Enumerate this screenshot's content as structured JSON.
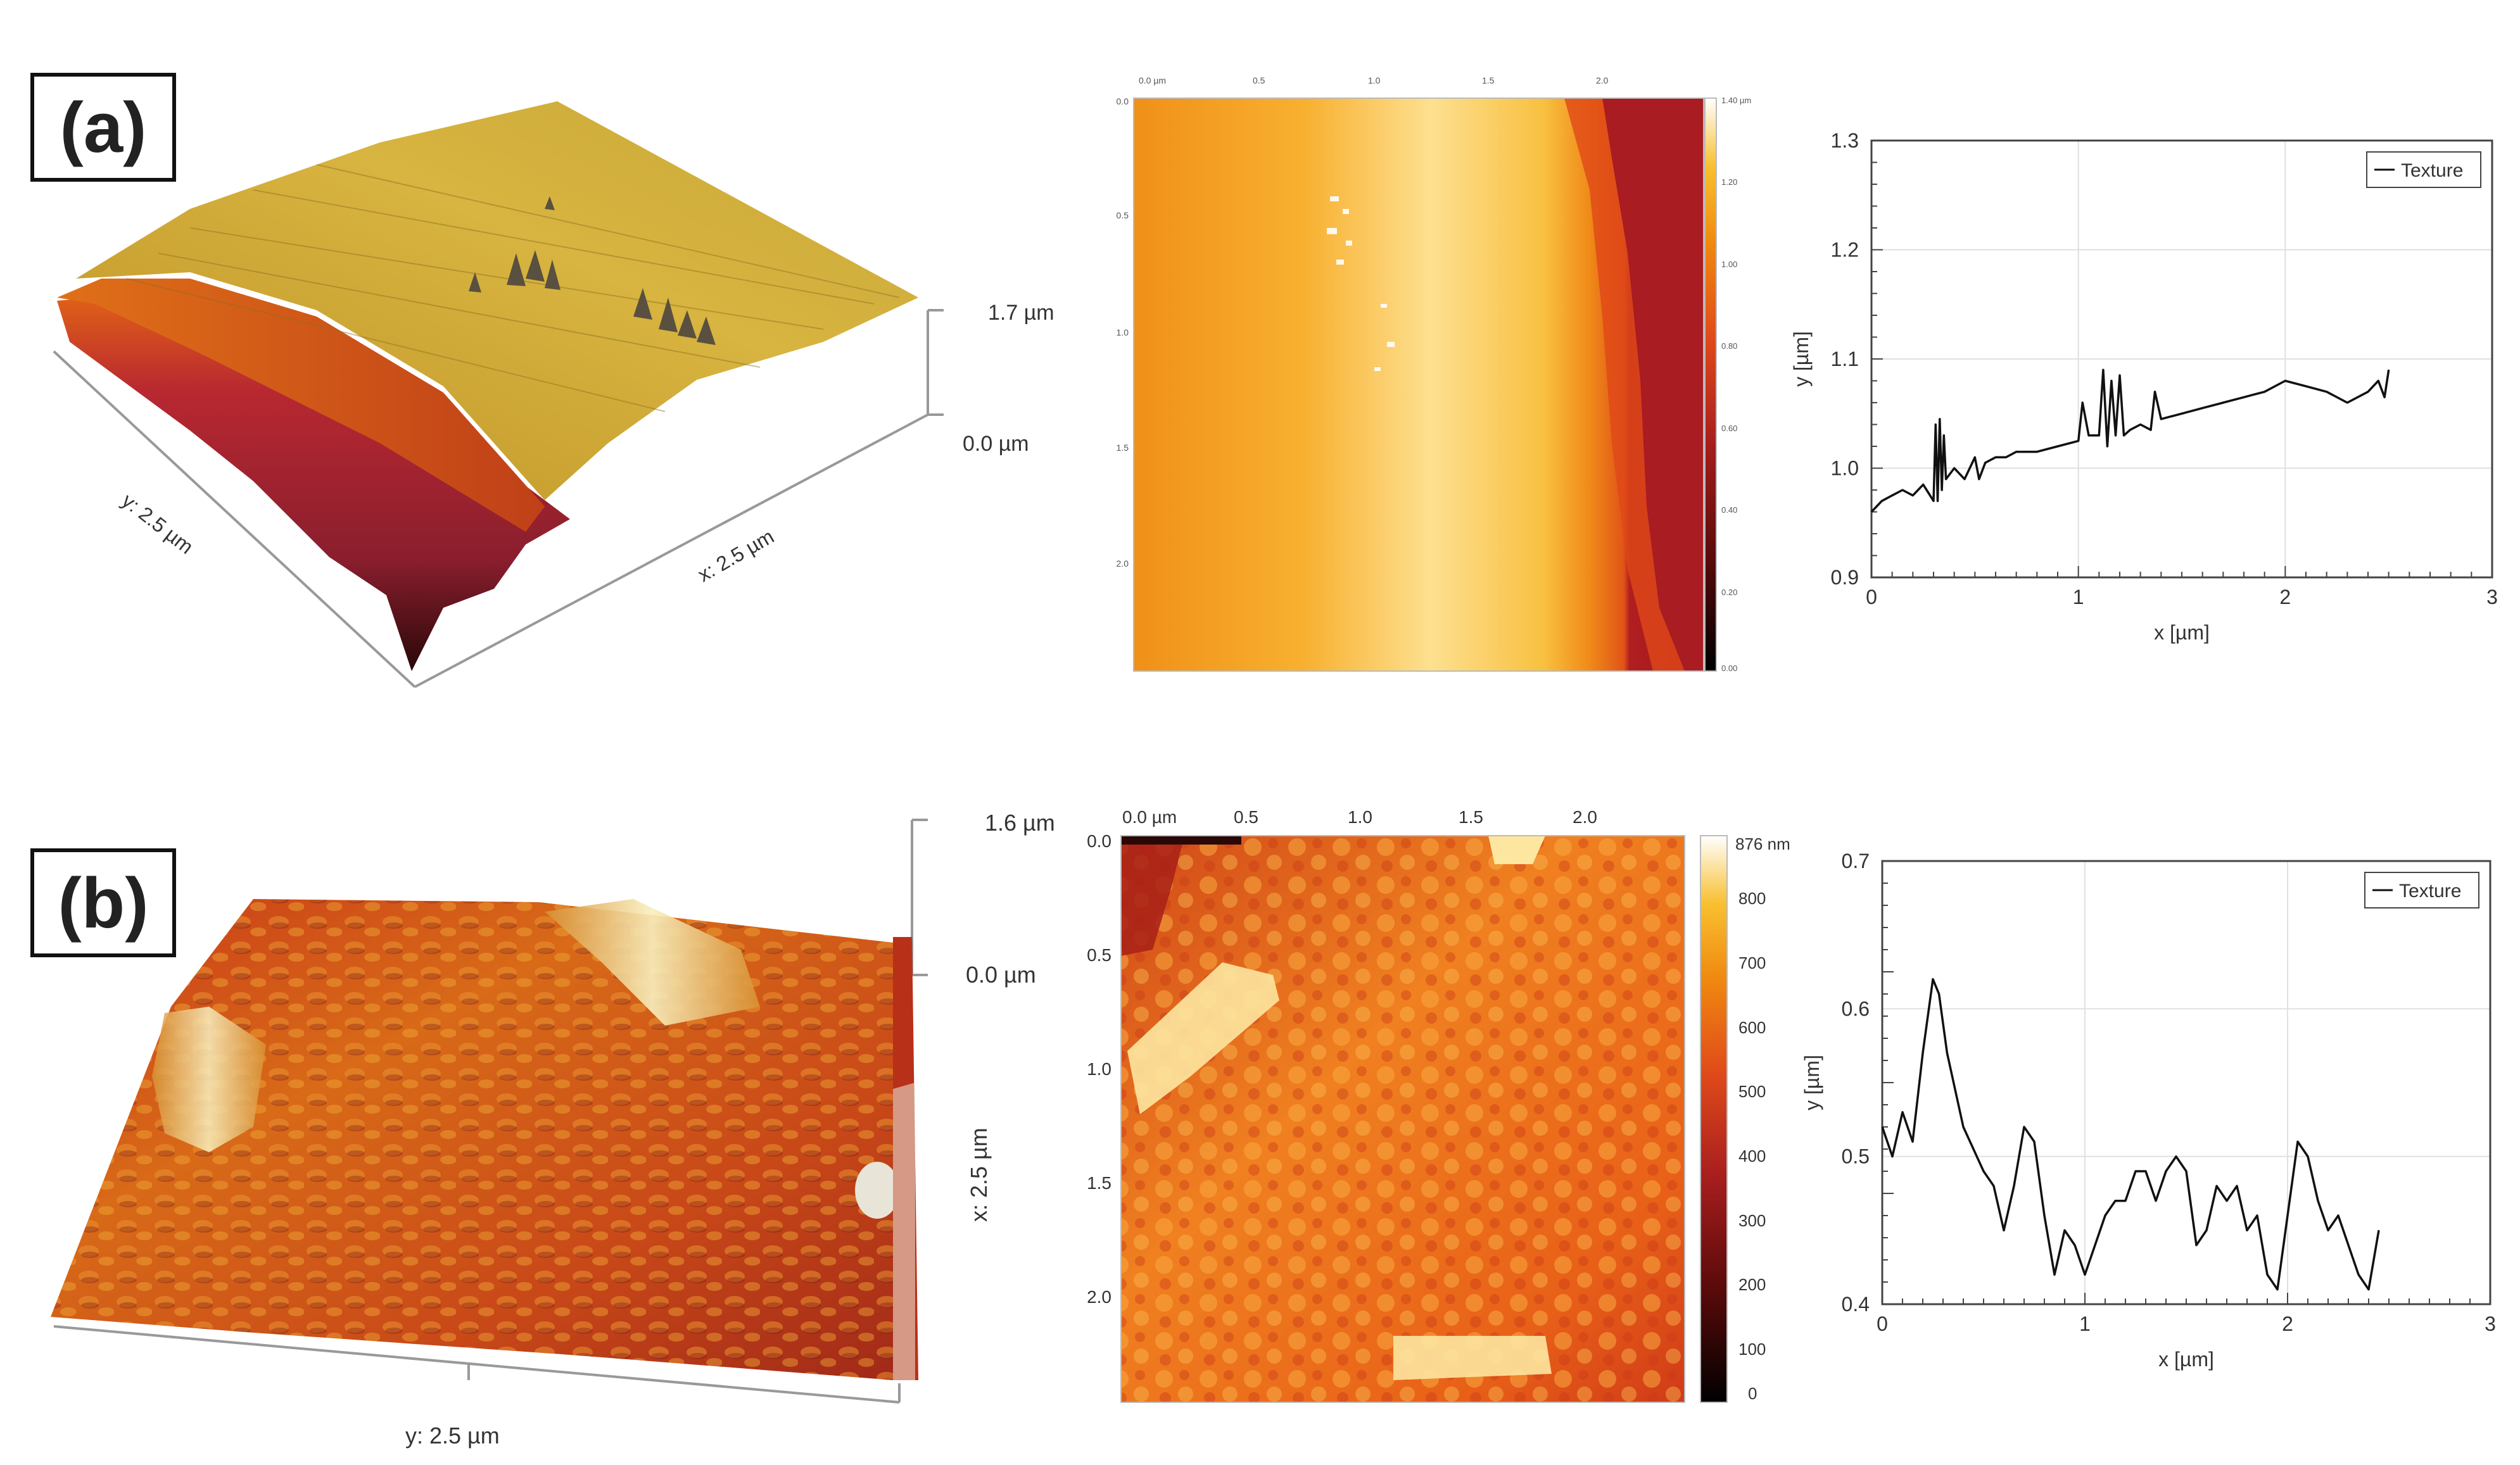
{
  "panel_a": {
    "label": "(a)",
    "surface3d": {
      "z_top": "1.7 µm",
      "z_bottom": "0.0 µm",
      "x_axis": "x: 2.5 µm",
      "y_axis": "y: 2.5 µm"
    },
    "heightmap": {
      "top_ticks": [
        "0.0 µm",
        "0.5",
        "1.0",
        "1.5",
        "2.0"
      ],
      "left_ticks": [
        "0.0",
        "0.5",
        "1.0",
        "1.5",
        "2.0"
      ],
      "colorbar_ticks": [
        "1.40 µm",
        "1.20",
        "1.00",
        "0.80",
        "0.60",
        "0.40",
        "0.20",
        "0.00"
      ]
    }
  },
  "panel_b": {
    "label": "(b)",
    "surface3d": {
      "z_top": "1.6 µm",
      "z_bottom": "0.0 µm",
      "x_axis": "x: 2.5 µm",
      "y_axis": "y: 2.5 µm"
    },
    "heightmap": {
      "top_ticks": [
        "0.0 µm",
        "0.5",
        "1.0",
        "1.5",
        "2.0"
      ],
      "left_ticks": [
        "0.0",
        "0.5",
        "1.0",
        "1.5",
        "2.0"
      ],
      "colorbar_ticks": [
        "876 nm",
        "800",
        "700",
        "600",
        "500",
        "400",
        "300",
        "200",
        "100",
        "0"
      ]
    }
  },
  "colors": {
    "surface_a": [
      "#3a0a0a",
      "#8a1e28",
      "#c84a1a",
      "#d8a020",
      "#e8d060"
    ],
    "surface_b": [
      "#4a0c0c",
      "#a82818",
      "#d86010",
      "#f0a020",
      "#f8f0c0"
    ],
    "heightmap": [
      "#000000",
      "#5a0a0a",
      "#a81e1e",
      "#e04a1a",
      "#f08a10",
      "#f8c030",
      "#ffffff"
    ]
  },
  "chart_data": [
    {
      "type": "line",
      "title": "",
      "xlabel": "x [µm]",
      "ylabel": "y [µm]",
      "xlim": [
        0,
        3
      ],
      "ylim": [
        0.9,
        1.3
      ],
      "xticks": [
        0,
        1,
        2,
        3
      ],
      "yticks": [
        0.9,
        1.0,
        1.1,
        1.2,
        1.3
      ],
      "grid": true,
      "legend_position": "top-right",
      "series": [
        {
          "name": "Texture",
          "x": [
            0.0,
            0.05,
            0.1,
            0.15,
            0.2,
            0.25,
            0.3,
            0.31,
            0.32,
            0.33,
            0.34,
            0.35,
            0.36,
            0.4,
            0.45,
            0.5,
            0.52,
            0.55,
            0.6,
            0.65,
            0.7,
            0.8,
            0.9,
            1.0,
            1.02,
            1.05,
            1.1,
            1.12,
            1.14,
            1.16,
            1.18,
            1.2,
            1.22,
            1.25,
            1.3,
            1.35,
            1.37,
            1.4,
            1.5,
            1.6,
            1.7,
            1.8,
            1.9,
            2.0,
            2.1,
            2.2,
            2.3,
            2.4,
            2.45,
            2.48,
            2.5
          ],
          "y": [
            0.96,
            0.97,
            0.975,
            0.98,
            0.975,
            0.985,
            0.97,
            1.04,
            0.97,
            1.045,
            0.98,
            1.03,
            0.99,
            1.0,
            0.99,
            1.01,
            0.99,
            1.005,
            1.01,
            1.01,
            1.015,
            1.015,
            1.02,
            1.025,
            1.06,
            1.03,
            1.03,
            1.09,
            1.02,
            1.08,
            1.03,
            1.085,
            1.03,
            1.035,
            1.04,
            1.035,
            1.07,
            1.045,
            1.05,
            1.055,
            1.06,
            1.065,
            1.07,
            1.08,
            1.075,
            1.07,
            1.06,
            1.07,
            1.08,
            1.065,
            1.09
          ]
        }
      ]
    },
    {
      "type": "line",
      "title": "",
      "xlabel": "x [µm]",
      "ylabel": "y [µm]",
      "xlim": [
        0,
        3
      ],
      "ylim": [
        0.4,
        0.7
      ],
      "xticks": [
        0,
        1,
        2,
        3
      ],
      "yticks": [
        0.4,
        0.5,
        0.6,
        0.7
      ],
      "grid": true,
      "legend_position": "top-right",
      "series": [
        {
          "name": "Texture",
          "x": [
            0.0,
            0.05,
            0.1,
            0.15,
            0.2,
            0.25,
            0.28,
            0.32,
            0.4,
            0.5,
            0.55,
            0.6,
            0.65,
            0.7,
            0.75,
            0.8,
            0.85,
            0.9,
            0.95,
            1.0,
            1.05,
            1.1,
            1.15,
            1.2,
            1.25,
            1.3,
            1.35,
            1.4,
            1.45,
            1.5,
            1.55,
            1.6,
            1.65,
            1.7,
            1.75,
            1.8,
            1.85,
            1.9,
            1.95,
            2.0,
            2.05,
            2.1,
            2.15,
            2.2,
            2.25,
            2.3,
            2.35,
            2.4,
            2.45
          ],
          "y": [
            0.52,
            0.5,
            0.53,
            0.51,
            0.57,
            0.62,
            0.61,
            0.57,
            0.52,
            0.49,
            0.48,
            0.45,
            0.48,
            0.52,
            0.51,
            0.46,
            0.42,
            0.45,
            0.44,
            0.42,
            0.44,
            0.46,
            0.47,
            0.47,
            0.49,
            0.49,
            0.47,
            0.49,
            0.5,
            0.49,
            0.44,
            0.45,
            0.48,
            0.47,
            0.48,
            0.45,
            0.46,
            0.42,
            0.41,
            0.46,
            0.51,
            0.5,
            0.47,
            0.45,
            0.46,
            0.44,
            0.42,
            0.41,
            0.45
          ]
        }
      ]
    }
  ]
}
